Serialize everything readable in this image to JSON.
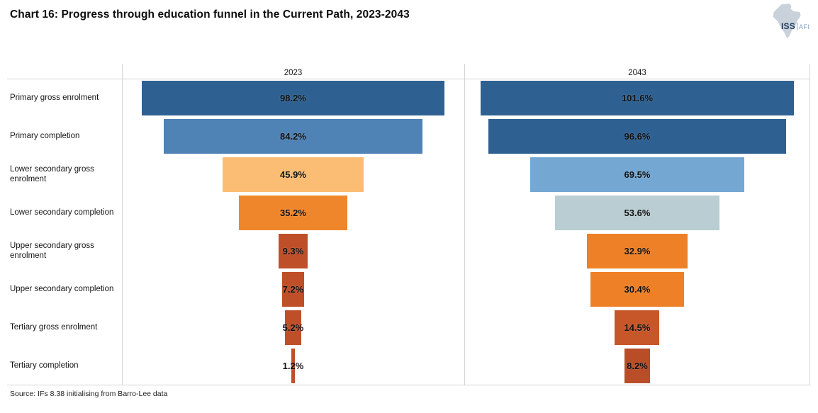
{
  "title": "Chart 16: Progress through education funnel in the Current Path, 2023-2043",
  "source": "Source: IFs 8.38 initialising from Barro-Lee data",
  "logo": {
    "org": "ISS",
    "unit": "AFI",
    "org_color": "#1f3a5c",
    "unit_color": "#7f9fc1",
    "map_color": "#c9d2da"
  },
  "chart_data": {
    "type": "bar",
    "subtype": "horizontal-funnel-comparison",
    "title": "Chart 16: Progress through education funnel in the Current Path, 2023-2043",
    "categories": [
      "Primary gross enrolment",
      "Primary completion",
      "Lower secondary gross enrolment",
      "Lower secondary completion",
      "Upper secondary gross enrolment",
      "Upper secondary completion",
      "Tertiary gross enrolment",
      "Tertiary completion"
    ],
    "series": [
      {
        "name": "2023",
        "values": [
          98.2,
          84.2,
          45.9,
          35.2,
          9.3,
          7.2,
          5.2,
          1.2
        ],
        "labels": [
          "98.2%",
          "84.2%",
          "45.9%",
          "35.2%",
          "9.3%",
          "7.2%",
          "5.2%",
          "1.2%"
        ],
        "colors": [
          "#2e6191",
          "#4f82b5",
          "#fbbd73",
          "#f0862b",
          "#bf4f28",
          "#bf4f28",
          "#bf4f28",
          "#bf4f28"
        ]
      },
      {
        "name": "2043",
        "values": [
          101.6,
          96.6,
          69.5,
          53.6,
          32.9,
          30.4,
          14.5,
          8.2
        ],
        "labels": [
          "101.6%",
          "96.6%",
          "69.5%",
          "53.6%",
          "32.9%",
          "30.4%",
          "14.5%",
          "8.2%"
        ],
        "colors": [
          "#2e6191",
          "#2e6191",
          "#74a8d3",
          "#b9cdd2",
          "#ee8127",
          "#ee8127",
          "#c75629",
          "#b94d27"
        ]
      }
    ],
    "value_suffix": "%",
    "xmax": 105,
    "bar_alignment": "center",
    "grid": "panel frame only, no axis ticks, no legend",
    "legend_position": "none",
    "frame_color": "#d4d4d4"
  }
}
